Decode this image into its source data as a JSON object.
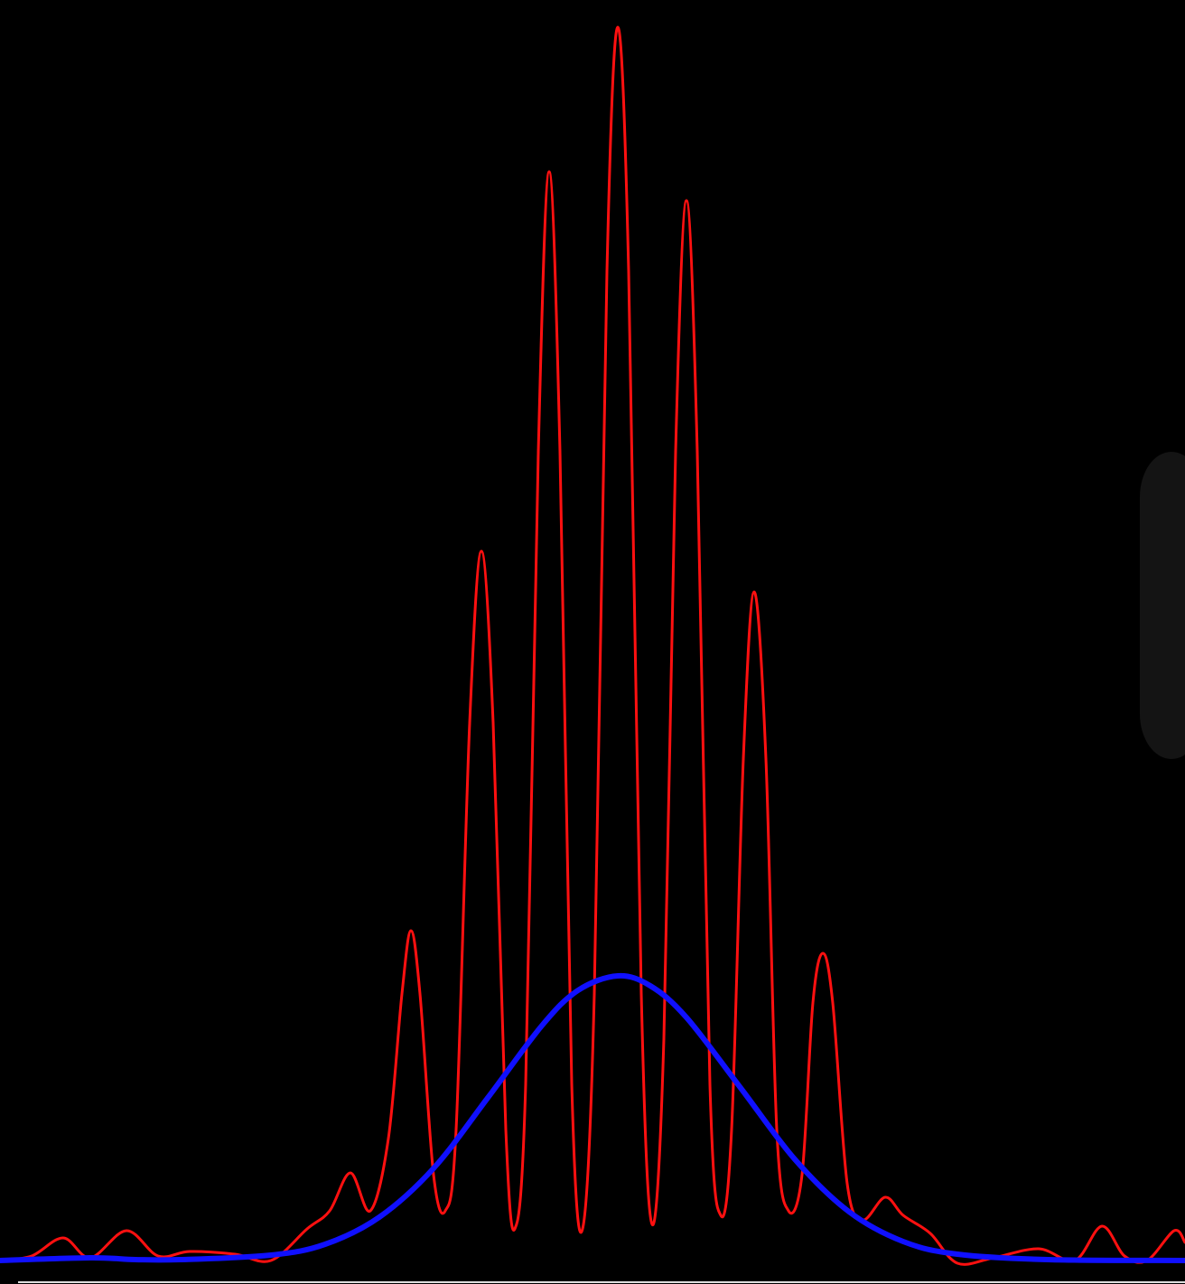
{
  "chart_data": {
    "type": "line",
    "xlim": [
      0,
      1312
    ],
    "ylim": [
      0,
      1400
    ],
    "series": [
      {
        "color": "#ff1010",
        "width": 3,
        "x": [
          0,
          35,
          70,
          100,
          140,
          175,
          210,
          260,
          300,
          340,
          365,
          388,
          410,
          430,
          445,
          455,
          465,
          480,
          493,
          505,
          520,
          533,
          546,
          560,
          570,
          582,
          596,
          608,
          620,
          633,
          645,
          658,
          672,
          684,
          696,
          710,
          722,
          735,
          748,
          760,
          772,
          786,
          798,
          810,
          823,
          835,
          848,
          860,
          873,
          888,
          900,
          911,
          922,
          938,
          955,
          980,
          1000,
          1030,
          1060,
          1100,
          1150,
          1190,
          1220,
          1245,
          1270,
          1300,
          1312
        ],
        "values": [
          5,
          10,
          30,
          8,
          38,
          10,
          15,
          12,
          5,
          40,
          60,
          102,
          60,
          140,
          300,
          370,
          300,
          100,
          60,
          150,
          600,
          790,
          600,
          150,
          40,
          200,
          900,
          1210,
          900,
          200,
          40,
          300,
          1100,
          1370,
          1100,
          300,
          45,
          250,
          900,
          1178,
          900,
          200,
          55,
          150,
          560,
          745,
          560,
          150,
          60,
          100,
          290,
          345,
          290,
          90,
          50,
          75,
          55,
          35,
          2,
          8,
          18,
          5,
          43,
          10,
          5,
          38,
          25
        ]
      },
      {
        "color": "#1010ff",
        "width": 6,
        "x": [
          0,
          100,
          150,
          200,
          300,
          360,
          420,
          480,
          540,
          600,
          640,
          684,
          720,
          760,
          820,
          880,
          940,
          1000,
          1060,
          1160,
          1312
        ],
        "values": [
          5,
          8,
          6,
          6,
          11,
          23,
          53,
          107,
          185,
          265,
          304,
          320,
          309,
          274,
          196,
          117,
          59,
          26,
          12,
          6,
          5
        ]
      }
    ]
  }
}
